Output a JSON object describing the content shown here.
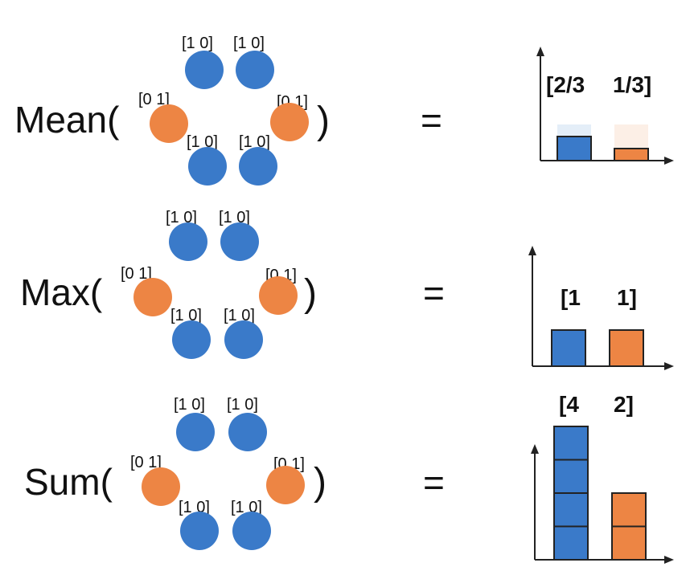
{
  "colors": {
    "blue": "#3a7ac9",
    "orange": "#ed8544",
    "blue_ghost": "#e4eef8",
    "orange_ghost": "#fcefe6",
    "outline": "#222222"
  },
  "rows": [
    {
      "function": "Mean(",
      "close": ")",
      "equals": "=",
      "nodes": [
        {
          "color": "blue",
          "label": "[1 0]"
        },
        {
          "color": "blue",
          "label": "[1 0]"
        },
        {
          "color": "orange",
          "label": "[0 1]"
        },
        {
          "color": "orange",
          "label": "[0 1]"
        },
        {
          "color": "blue",
          "label": "[1 0]"
        },
        {
          "color": "blue",
          "label": "[1 0]"
        }
      ],
      "result": [
        "[2/3",
        "1/3]"
      ]
    },
    {
      "function": "Max(",
      "close": ")",
      "equals": "=",
      "nodes": [
        {
          "color": "blue",
          "label": "[1 0]"
        },
        {
          "color": "blue",
          "label": "[1 0]"
        },
        {
          "color": "orange",
          "label": "[0 1]"
        },
        {
          "color": "orange",
          "label": "[0 1]"
        },
        {
          "color": "blue",
          "label": "[1 0]"
        },
        {
          "color": "blue",
          "label": "[1 0]"
        }
      ],
      "result": [
        "[1",
        "1]"
      ]
    },
    {
      "function": "Sum(",
      "close": ")",
      "equals": "=",
      "nodes": [
        {
          "color": "blue",
          "label": "[1 0]"
        },
        {
          "color": "blue",
          "label": "[1 0]"
        },
        {
          "color": "orange",
          "label": "[0 1]"
        },
        {
          "color": "orange",
          "label": "[0 1]"
        },
        {
          "color": "blue",
          "label": "[1 0]"
        },
        {
          "color": "blue",
          "label": "[1 0]"
        }
      ],
      "result": [
        "[4",
        "2]"
      ]
    }
  ],
  "chart_data": [
    {
      "type": "bar",
      "categories": [
        "",
        ""
      ],
      "series": [
        {
          "values": [
            0.6667,
            0.3333
          ],
          "colors": [
            "blue",
            "orange"
          ],
          "max_outline": [
            1,
            1
          ]
        }
      ],
      "labels": [
        "[2/3",
        "1/3]"
      ],
      "ylim": [
        0,
        1
      ],
      "grid": false
    },
    {
      "type": "bar",
      "categories": [
        "",
        ""
      ],
      "series": [
        {
          "values": [
            1,
            1
          ],
          "colors": [
            "blue",
            "orange"
          ]
        }
      ],
      "labels": [
        "[1",
        "1]"
      ],
      "ylim": [
        0,
        1
      ],
      "grid": false
    },
    {
      "type": "bar",
      "categories": [
        "",
        ""
      ],
      "series": [
        {
          "values": [
            4,
            2
          ],
          "colors": [
            "blue",
            "orange"
          ],
          "stacked_units": true
        }
      ],
      "labels": [
        "[4",
        "2]"
      ],
      "ylim": [
        0,
        4
      ],
      "grid": false
    }
  ]
}
